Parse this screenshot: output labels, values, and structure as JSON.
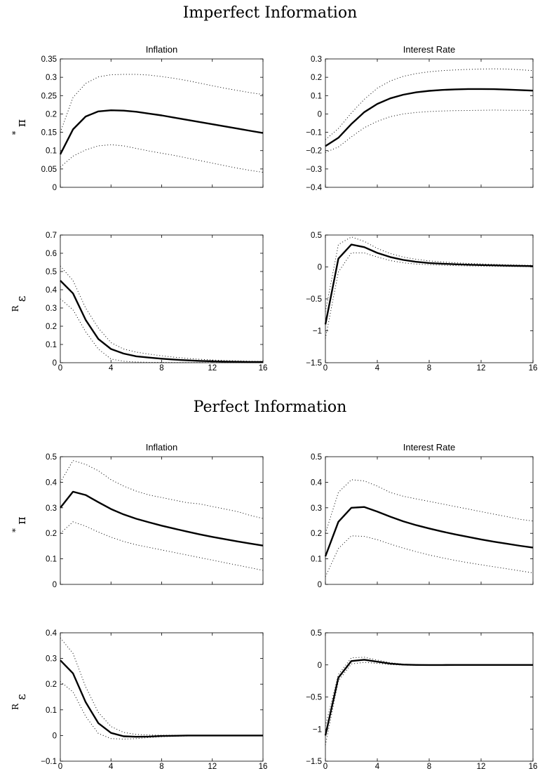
{
  "sections": [
    {
      "title": "Imperfect Information"
    },
    {
      "title": "Perfect Information"
    }
  ],
  "chart_data": [
    {
      "type": "line",
      "section": 0,
      "title": "Inflation",
      "ylabel": "π",
      "ylabel_sup": "*",
      "xlim": [
        0,
        16
      ],
      "xticks": [
        "0",
        "4",
        "8",
        "12",
        "16"
      ],
      "ylim": [
        0,
        0.35
      ],
      "yticks": [
        "0",
        "0.05",
        "0.1",
        "0.15",
        "0.2",
        "0.25",
        "0.3",
        "0.35"
      ],
      "show_xtick_labels": false,
      "x": [
        0,
        1,
        2,
        3,
        4,
        5,
        6,
        7,
        8,
        9,
        10,
        11,
        12,
        13,
        14,
        15,
        16
      ],
      "series": [
        {
          "style": "solid",
          "values": [
            0.09,
            0.158,
            0.193,
            0.207,
            0.21,
            0.209,
            0.206,
            0.201,
            0.196,
            0.19,
            0.184,
            0.178,
            0.172,
            0.166,
            0.16,
            0.154,
            0.148
          ]
        },
        {
          "style": "dotted",
          "values": [
            0.15,
            0.245,
            0.283,
            0.301,
            0.307,
            0.308,
            0.308,
            0.306,
            0.302,
            0.297,
            0.291,
            0.284,
            0.277,
            0.27,
            0.264,
            0.258,
            0.253
          ]
        },
        {
          "style": "dotted",
          "values": [
            0.055,
            0.085,
            0.102,
            0.113,
            0.116,
            0.113,
            0.106,
            0.099,
            0.093,
            0.087,
            0.08,
            0.073,
            0.066,
            0.059,
            0.052,
            0.046,
            0.041
          ]
        }
      ]
    },
    {
      "type": "line",
      "section": 0,
      "title": "Interest Rate",
      "ylabel": "",
      "ylabel_sup": "",
      "xlim": [
        0,
        16
      ],
      "xticks": [
        "0",
        "4",
        "8",
        "12",
        "16"
      ],
      "ylim": [
        -0.4,
        0.3
      ],
      "yticks": [
        "−0.4",
        "−0.3",
        "−0.2",
        "−0.1",
        "0",
        "0.1",
        "0.2",
        "0.3"
      ],
      "show_xtick_labels": false,
      "x": [
        0,
        1,
        2,
        3,
        4,
        5,
        6,
        7,
        8,
        9,
        10,
        11,
        12,
        13,
        14,
        15,
        16
      ],
      "series": [
        {
          "style": "solid",
          "values": [
            -0.175,
            -0.13,
            -0.055,
            0.01,
            0.055,
            0.085,
            0.105,
            0.118,
            0.126,
            0.131,
            0.134,
            0.136,
            0.136,
            0.135,
            0.133,
            0.13,
            0.127
          ]
        },
        {
          "style": "dotted",
          "values": [
            -0.14,
            -0.08,
            0.005,
            0.08,
            0.14,
            0.18,
            0.205,
            0.22,
            0.23,
            0.236,
            0.24,
            0.243,
            0.245,
            0.246,
            0.245,
            0.241,
            0.236
          ]
        },
        {
          "style": "dotted",
          "values": [
            -0.21,
            -0.18,
            -0.125,
            -0.075,
            -0.04,
            -0.015,
            0.0,
            0.008,
            0.013,
            0.016,
            0.018,
            0.019,
            0.02,
            0.021,
            0.02,
            0.02,
            0.019
          ]
        }
      ]
    },
    {
      "type": "line",
      "section": 0,
      "title": "",
      "ylabel": "ε",
      "ylabel_sup": "R",
      "xlim": [
        0,
        16
      ],
      "xticks": [
        "0",
        "4",
        "8",
        "12",
        "16"
      ],
      "ylim": [
        0,
        0.7
      ],
      "yticks": [
        "0",
        "0.1",
        "0.2",
        "0.3",
        "0.4",
        "0.5",
        "0.6",
        "0.7"
      ],
      "show_xtick_labels": true,
      "x": [
        0,
        1,
        2,
        3,
        4,
        5,
        6,
        7,
        8,
        9,
        10,
        11,
        12,
        13,
        14,
        15,
        16
      ],
      "series": [
        {
          "style": "solid",
          "values": [
            0.45,
            0.38,
            0.235,
            0.13,
            0.075,
            0.05,
            0.035,
            0.028,
            0.022,
            0.017,
            0.013,
            0.01,
            0.008,
            0.006,
            0.005,
            0.004,
            0.004
          ]
        },
        {
          "style": "dotted",
          "values": [
            0.53,
            0.45,
            0.3,
            0.19,
            0.11,
            0.075,
            0.058,
            0.047,
            0.038,
            0.03,
            0.024,
            0.019,
            0.015,
            0.012,
            0.01,
            0.008,
            0.007
          ]
        },
        {
          "style": "dotted",
          "values": [
            0.35,
            0.29,
            0.17,
            0.075,
            0.02,
            0.008,
            0.004,
            0.002,
            0.002,
            0.001,
            0.001,
            0.001,
            0.001,
            0.0,
            0.0,
            0.0,
            0.0
          ]
        }
      ]
    },
    {
      "type": "line",
      "section": 0,
      "title": "",
      "ylabel": "",
      "ylabel_sup": "",
      "xlim": [
        0,
        16
      ],
      "xticks": [
        "0",
        "4",
        "8",
        "12",
        "16"
      ],
      "ylim": [
        -1.5,
        0.5
      ],
      "yticks": [
        "−1.5",
        "−1",
        "−0.5",
        "0",
        "0.5"
      ],
      "show_xtick_labels": true,
      "x": [
        0,
        1,
        2,
        3,
        4,
        5,
        6,
        7,
        8,
        9,
        10,
        11,
        12,
        13,
        14,
        15,
        16
      ],
      "series": [
        {
          "style": "solid",
          "values": [
            -0.9,
            0.13,
            0.35,
            0.31,
            0.22,
            0.155,
            0.11,
            0.08,
            0.062,
            0.05,
            0.042,
            0.035,
            0.03,
            0.025,
            0.02,
            0.016,
            0.013
          ]
        },
        {
          "style": "dotted",
          "values": [
            -0.7,
            0.35,
            0.47,
            0.4,
            0.29,
            0.21,
            0.155,
            0.12,
            0.095,
            0.078,
            0.065,
            0.055,
            0.047,
            0.04,
            0.034,
            0.029,
            0.025
          ]
        },
        {
          "style": "dotted",
          "values": [
            -1.12,
            -0.08,
            0.22,
            0.22,
            0.155,
            0.1,
            0.065,
            0.045,
            0.035,
            0.027,
            0.021,
            0.016,
            0.012,
            0.009,
            0.007,
            0.005,
            0.003
          ]
        }
      ]
    },
    {
      "type": "line",
      "section": 1,
      "title": "Inflation",
      "ylabel": "π",
      "ylabel_sup": "*",
      "xlim": [
        0,
        16
      ],
      "xticks": [
        "0",
        "4",
        "8",
        "12",
        "16"
      ],
      "ylim": [
        0,
        0.5
      ],
      "yticks": [
        "0",
        "0.1",
        "0.2",
        "0.3",
        "0.4",
        "0.5"
      ],
      "show_xtick_labels": false,
      "x": [
        0,
        1,
        2,
        3,
        4,
        5,
        6,
        7,
        8,
        9,
        10,
        11,
        12,
        13,
        14,
        15,
        16
      ],
      "series": [
        {
          "style": "solid",
          "values": [
            0.3,
            0.363,
            0.35,
            0.322,
            0.295,
            0.274,
            0.257,
            0.243,
            0.23,
            0.218,
            0.207,
            0.196,
            0.186,
            0.177,
            0.168,
            0.16,
            0.152
          ]
        },
        {
          "style": "dotted",
          "values": [
            0.4,
            0.485,
            0.47,
            0.445,
            0.41,
            0.385,
            0.365,
            0.35,
            0.34,
            0.33,
            0.32,
            0.315,
            0.305,
            0.295,
            0.285,
            0.27,
            0.258
          ]
        },
        {
          "style": "dotted",
          "values": [
            0.2,
            0.245,
            0.228,
            0.205,
            0.185,
            0.168,
            0.155,
            0.145,
            0.135,
            0.125,
            0.115,
            0.105,
            0.095,
            0.085,
            0.075,
            0.065,
            0.055
          ]
        }
      ]
    },
    {
      "type": "line",
      "section": 1,
      "title": "Interest Rate",
      "ylabel": "",
      "ylabel_sup": "",
      "xlim": [
        0,
        16
      ],
      "xticks": [
        "0",
        "4",
        "8",
        "12",
        "16"
      ],
      "ylim": [
        0,
        0.5
      ],
      "yticks": [
        "0",
        "0.1",
        "0.2",
        "0.3",
        "0.4",
        "0.5"
      ],
      "show_xtick_labels": false,
      "x": [
        0,
        1,
        2,
        3,
        4,
        5,
        6,
        7,
        8,
        9,
        10,
        11,
        12,
        13,
        14,
        15,
        16
      ],
      "series": [
        {
          "style": "solid",
          "values": [
            0.11,
            0.245,
            0.3,
            0.303,
            0.285,
            0.265,
            0.247,
            0.232,
            0.219,
            0.207,
            0.196,
            0.186,
            0.176,
            0.167,
            0.159,
            0.151,
            0.144
          ]
        },
        {
          "style": "dotted",
          "values": [
            0.2,
            0.36,
            0.41,
            0.405,
            0.385,
            0.36,
            0.345,
            0.335,
            0.325,
            0.315,
            0.305,
            0.295,
            0.285,
            0.275,
            0.265,
            0.255,
            0.248
          ]
        },
        {
          "style": "dotted",
          "values": [
            0.03,
            0.14,
            0.19,
            0.188,
            0.175,
            0.158,
            0.142,
            0.128,
            0.115,
            0.104,
            0.094,
            0.085,
            0.077,
            0.069,
            0.061,
            0.053,
            0.045
          ]
        }
      ]
    },
    {
      "type": "line",
      "section": 1,
      "title": "",
      "ylabel": "ε",
      "ylabel_sup": "R",
      "xlim": [
        0,
        16
      ],
      "xticks": [
        "0",
        "4",
        "8",
        "12",
        "16"
      ],
      "ylim": [
        -0.1,
        0.4
      ],
      "yticks": [
        "−0.1",
        "0",
        "0.1",
        "0.2",
        "0.3",
        "0.4"
      ],
      "show_xtick_labels": true,
      "x": [
        0,
        1,
        2,
        3,
        4,
        5,
        6,
        7,
        8,
        9,
        10,
        11,
        12,
        13,
        14,
        15,
        16
      ],
      "series": [
        {
          "style": "solid",
          "values": [
            0.293,
            0.242,
            0.13,
            0.048,
            0.01,
            -0.003,
            -0.005,
            -0.004,
            -0.002,
            -0.001,
            0.0,
            0.0,
            0.0,
            0.0,
            0.0,
            0.0,
            0.0
          ]
        },
        {
          "style": "dotted",
          "values": [
            0.38,
            0.32,
            0.19,
            0.09,
            0.035,
            0.012,
            0.004,
            0.002,
            0.001,
            0.001,
            0.0,
            0.0,
            0.0,
            0.0,
            0.0,
            0.0,
            0.0
          ]
        },
        {
          "style": "dotted",
          "values": [
            0.21,
            0.17,
            0.075,
            0.008,
            -0.012,
            -0.014,
            -0.012,
            -0.008,
            -0.005,
            -0.003,
            -0.002,
            -0.001,
            -0.001,
            0.0,
            0.0,
            0.0,
            0.0
          ]
        }
      ]
    },
    {
      "type": "line",
      "section": 1,
      "title": "",
      "ylabel": "",
      "ylabel_sup": "",
      "xlim": [
        0,
        16
      ],
      "xticks": [
        "0",
        "4",
        "8",
        "12",
        "16"
      ],
      "ylim": [
        -1.5,
        0.5
      ],
      "yticks": [
        "−1.5",
        "−1",
        "−0.5",
        "0",
        "0.5"
      ],
      "show_xtick_labels": true,
      "x": [
        0,
        1,
        2,
        3,
        4,
        5,
        6,
        7,
        8,
        9,
        10,
        11,
        12,
        13,
        14,
        15,
        16
      ],
      "series": [
        {
          "style": "solid",
          "values": [
            -1.1,
            -0.2,
            0.06,
            0.08,
            0.05,
            0.02,
            0.005,
            0.0,
            -0.002,
            -0.002,
            -0.001,
            0.0,
            0.0,
            0.0,
            0.0,
            0.0,
            0.0
          ]
        },
        {
          "style": "dotted",
          "values": [
            -0.95,
            -0.15,
            0.11,
            0.12,
            0.075,
            0.035,
            0.012,
            0.004,
            0.001,
            0.0,
            0.0,
            0.0,
            0.0,
            0.0,
            0.0,
            0.0,
            0.0
          ]
        },
        {
          "style": "dotted",
          "values": [
            -1.25,
            -0.25,
            0.015,
            0.04,
            0.025,
            0.005,
            -0.003,
            -0.005,
            -0.004,
            -0.003,
            -0.002,
            -0.001,
            0.0,
            0.0,
            0.0,
            0.0,
            0.0
          ]
        }
      ]
    }
  ]
}
